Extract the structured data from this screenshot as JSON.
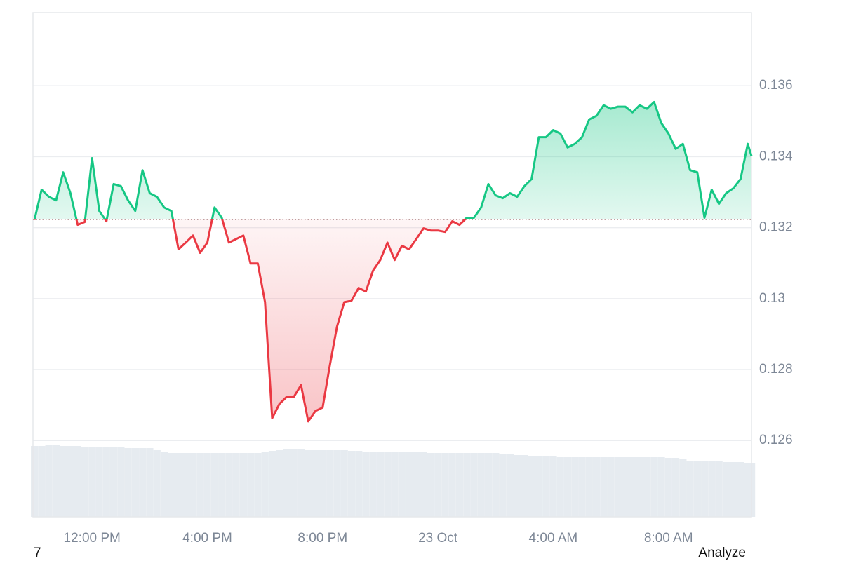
{
  "chart_data": {
    "type": "line",
    "x": [
      10.0,
      10.25,
      10.5,
      10.75,
      11.0,
      11.25,
      11.5,
      11.75,
      12.0,
      12.25,
      12.5,
      12.75,
      13.0,
      13.25,
      13.5,
      13.75,
      14.0,
      14.25,
      14.5,
      14.75,
      15.0,
      15.25,
      15.5,
      15.75,
      16.0,
      16.25,
      16.5,
      16.75,
      17.0,
      17.25,
      17.5,
      17.75,
      18.0,
      18.25,
      18.5,
      18.75,
      19.0,
      19.25,
      19.5,
      19.75,
      20.0,
      20.25,
      20.5,
      20.75,
      21.0,
      21.25,
      21.5,
      21.75,
      22.0,
      22.25,
      22.5,
      22.75,
      23.0,
      23.25,
      23.5,
      23.75,
      24.0,
      24.25,
      24.5,
      24.75,
      25.0,
      25.25,
      25.5,
      25.75,
      26.0,
      26.25,
      26.5,
      26.75,
      27.0,
      27.25,
      27.5,
      27.75,
      28.0,
      28.25,
      28.5,
      28.75,
      29.0,
      29.25,
      29.5,
      29.75,
      30.0,
      30.25,
      30.5,
      30.75,
      31.0,
      31.25,
      31.5,
      31.75,
      32.0,
      32.25,
      32.5,
      32.75,
      33.0,
      33.25,
      33.5,
      33.75,
      34.0,
      34.25,
      34.5,
      34.75,
      34.88
    ],
    "values": [
      0.13222,
      0.13307,
      0.13287,
      0.13277,
      0.13356,
      0.13297,
      0.13208,
      0.13216,
      0.13396,
      0.13247,
      0.13218,
      0.13323,
      0.13317,
      0.13277,
      0.13247,
      0.13362,
      0.13297,
      0.13287,
      0.13257,
      0.13247,
      0.13139,
      0.13158,
      0.13178,
      0.13129,
      0.13158,
      0.13257,
      0.13228,
      0.13158,
      0.13168,
      0.13178,
      0.13099,
      0.13099,
      0.1299,
      0.12663,
      0.12703,
      0.12723,
      0.12723,
      0.12756,
      0.12654,
      0.12683,
      0.12693,
      0.12812,
      0.12921,
      0.1299,
      0.12994,
      0.1303,
      0.1302,
      0.13079,
      0.13109,
      0.13158,
      0.13109,
      0.13149,
      0.13139,
      0.13168,
      0.13198,
      0.13192,
      0.13192,
      0.13188,
      0.13218,
      0.13208,
      0.13228,
      0.13228,
      0.13257,
      0.13323,
      0.13291,
      0.13283,
      0.13297,
      0.13287,
      0.13317,
      0.13337,
      0.13455,
      0.13455,
      0.13475,
      0.13465,
      0.13426,
      0.13436,
      0.13455,
      0.13505,
      0.13515,
      0.13545,
      0.13535,
      0.13541,
      0.13541,
      0.13525,
      0.13545,
      0.13535,
      0.13554,
      0.13495,
      0.13465,
      0.13422,
      0.13436,
      0.13362,
      0.13356,
      0.13228,
      0.13307,
      0.13267,
      0.13297,
      0.13311,
      0.13337,
      0.13436,
      0.13402
    ],
    "baseline": 0.13223,
    "up_color": "#16c784",
    "down_color": "#ea3943",
    "volume": {
      "color": "#e6ebf0",
      "values": [
        101,
        101,
        102,
        102,
        101,
        101,
        101,
        100,
        100,
        100,
        99,
        99,
        99,
        98,
        98,
        98,
        98,
        96,
        92,
        91,
        91,
        91,
        91,
        91,
        91,
        91,
        91,
        91,
        91,
        91,
        91,
        91,
        92,
        94,
        96,
        97,
        97,
        97,
        96,
        96,
        95,
        95,
        95,
        95,
        94,
        94,
        93,
        93,
        93,
        93,
        93,
        93,
        92,
        92,
        92,
        91,
        91,
        91,
        91,
        91,
        91,
        91,
        91,
        91,
        91,
        90,
        89,
        88,
        88,
        87,
        87,
        87,
        87,
        86,
        86,
        86,
        86,
        86,
        86,
        86,
        86,
        86,
        86,
        85,
        85,
        85,
        85,
        85,
        84,
        84,
        82,
        80,
        80,
        79,
        79,
        79,
        78,
        78,
        78,
        77,
        77
      ]
    },
    "xlim": [
      9.95,
      34.88
    ],
    "xticks": [
      {
        "value": 12,
        "label": "12:00 PM"
      },
      {
        "value": 16,
        "label": "4:00 PM"
      },
      {
        "value": 20,
        "label": "8:00 PM"
      },
      {
        "value": 24,
        "label": "23 Oct"
      },
      {
        "value": 28,
        "label": "4:00 AM"
      },
      {
        "value": 32,
        "label": "8:00 AM"
      }
    ],
    "ylim": [
      0.12385,
      0.13806
    ],
    "yticks": [
      0.126,
      0.128,
      0.13,
      0.132,
      0.134,
      0.136
    ],
    "grid": true
  },
  "footer": {
    "left": "7",
    "right": "Analyze"
  }
}
